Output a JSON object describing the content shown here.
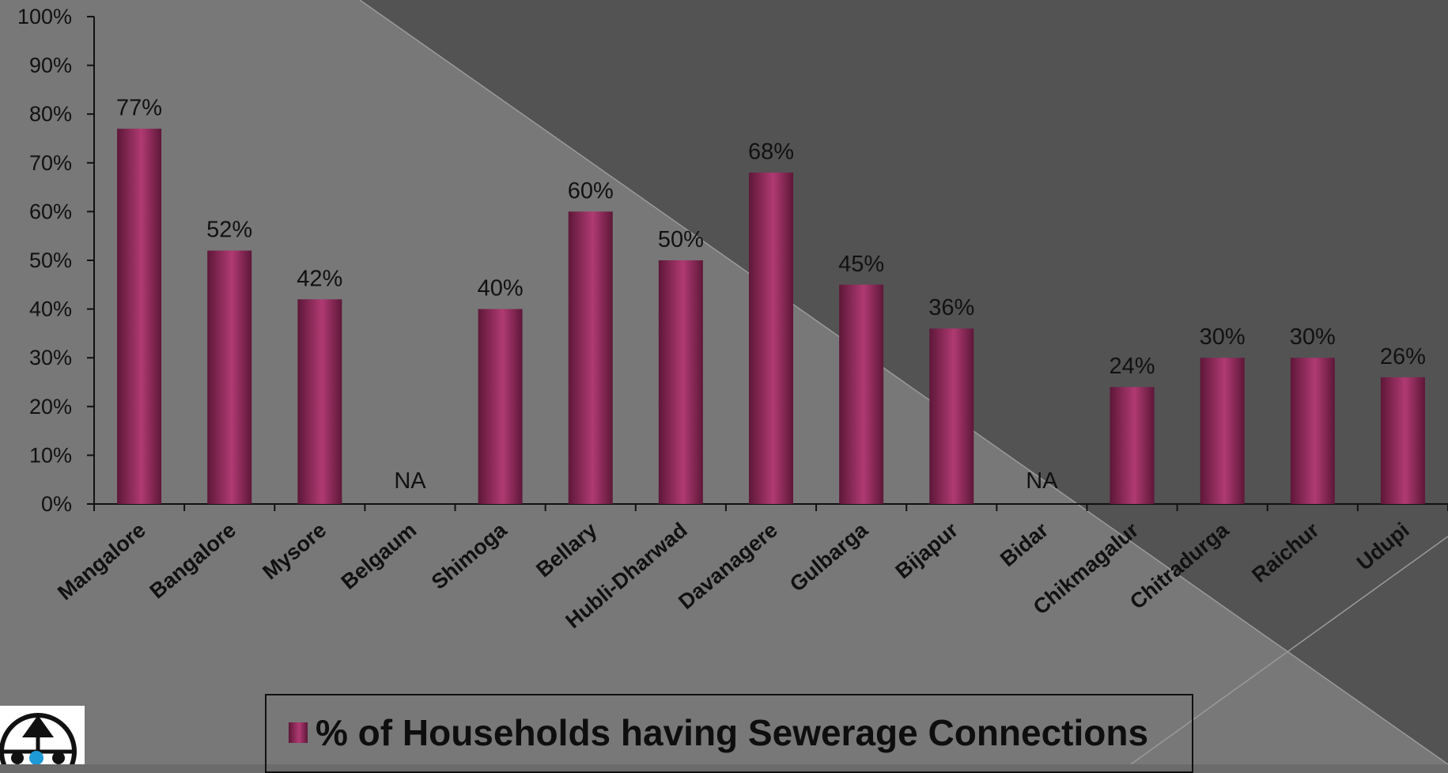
{
  "chart_data": {
    "type": "bar",
    "title": "",
    "xlabel": "",
    "ylabel": "",
    "ylim": [
      0,
      100
    ],
    "yticks": [
      "0%",
      "10%",
      "20%",
      "30%",
      "40%",
      "50%",
      "60%",
      "70%",
      "80%",
      "90%",
      "100%"
    ],
    "grid": false,
    "legend_position": "bottom",
    "categories": [
      "Mangalore",
      "Bangalore",
      "Mysore",
      "Belgaum",
      "Shimoga",
      "Bellary",
      "Hubli-Dharwad",
      "Davanagere",
      "Gulbarga",
      "Bijapur",
      "Bidar",
      "Chikmagalur",
      "Chitradurga",
      "Raichur",
      "Udupi"
    ],
    "series": [
      {
        "name": "% of Households having Sewerage Connections",
        "values": [
          77,
          52,
          42,
          null,
          40,
          60,
          50,
          68,
          45,
          36,
          null,
          24,
          30,
          30,
          26
        ],
        "labels": [
          "77%",
          "52%",
          "42%",
          "NA",
          "40%",
          "60%",
          "50%",
          "68%",
          "45%",
          "36%",
          "NA",
          "24%",
          "30%",
          "30%",
          "26%"
        ]
      }
    ]
  },
  "colors": {
    "bar_dark": "#5e1738",
    "bar_light": "#b03a73",
    "background": "#6b6b6b",
    "background_dark": "#535353"
  },
  "legend": {
    "label": "% of Households having Sewerage Connections"
  },
  "logo": {
    "icon": "globe-logo-icon"
  }
}
